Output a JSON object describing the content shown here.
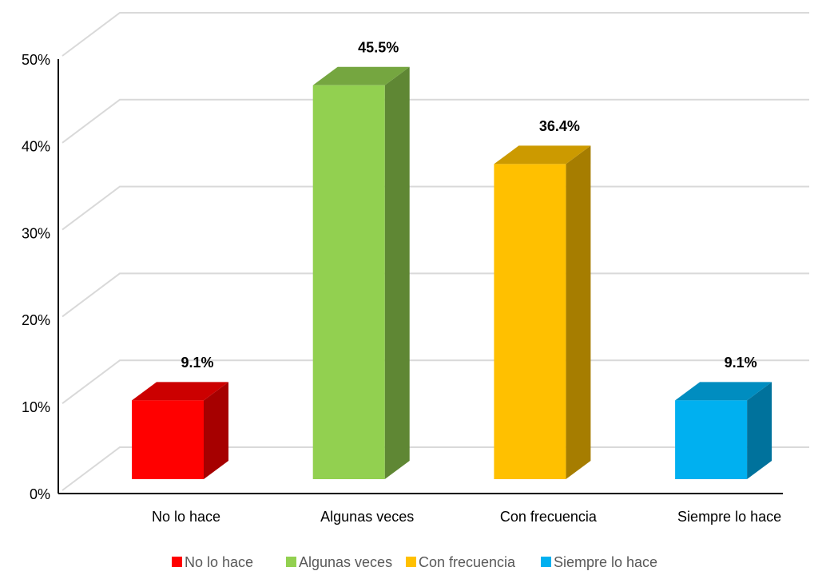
{
  "chart_data": {
    "type": "bar3d",
    "categories": [
      "No lo hace",
      "Algunas veces",
      "Con frecuencia",
      "Siempre lo hace"
    ],
    "values": [
      9.1,
      45.5,
      36.4,
      9.1
    ],
    "value_labels": [
      "9.1%",
      "45.5%",
      "36.4%",
      "9.1%"
    ],
    "colors": [
      "#ff0000",
      "#92d050",
      "#ffc000",
      "#00b0f0"
    ],
    "ylim": [
      0,
      50
    ],
    "yticks": [
      {
        "value": 0,
        "label": "0%"
      },
      {
        "value": 10,
        "label": "10%"
      },
      {
        "value": 20,
        "label": "20%"
      },
      {
        "value": 30,
        "label": "30%"
      },
      {
        "value": 40,
        "label": "40%"
      },
      {
        "value": 50,
        "label": "50%"
      }
    ],
    "grid": true,
    "legend": "bottom"
  }
}
